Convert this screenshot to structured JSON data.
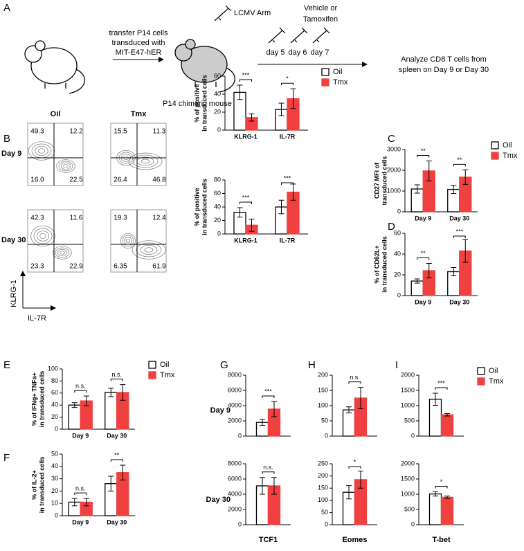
{
  "panel_labels": [
    "A",
    "B",
    "C",
    "D",
    "E",
    "F",
    "G",
    "H",
    "I"
  ],
  "schematic": {
    "transfer": [
      "transfer P14 cells",
      "transduced with",
      "MIT-E47-hER"
    ],
    "infection": "LCMV Arm",
    "treatment": [
      "Vehicle or",
      "Tamoxifen"
    ],
    "days": [
      "day 5",
      "day 6",
      "day 7"
    ],
    "mouse": "P14 chimeric mouse",
    "analysis": [
      "Analyze CD8 T cells from",
      "spleen on Day 9 or Day 30"
    ]
  },
  "flow": {
    "columns": [
      "Oil",
      "Tmx"
    ],
    "rows": [
      "Day 9",
      "Day 30"
    ],
    "y_axis": "KLRG-1",
    "x_axis": "IL-7R",
    "quadrants": [
      [
        [
          "49.3",
          "12.2",
          "16.0",
          "22.5"
        ],
        [
          "15.5",
          "11.3",
          "26.4",
          "46.8"
        ]
      ],
      [
        [
          "42.3",
          "11.6",
          "23.3",
          "22.9"
        ],
        [
          "19.3",
          "12.4",
          "6.35",
          "61.9"
        ]
      ]
    ]
  },
  "row_labels": [
    "Day 9",
    "Day 30"
  ],
  "chart_data": [
    {
      "type": "bar",
      "ylabel": [
        "% of positive",
        "in transduced cells"
      ],
      "categories": [
        "KLRG-1",
        "IL-7R"
      ],
      "series": [
        {
          "name": "Oil",
          "color": "#ffffff",
          "values": [
            42,
            23
          ],
          "errors": [
            8,
            7
          ]
        },
        {
          "name": "Tmx",
          "color": "#f04040",
          "values": [
            14,
            35
          ],
          "errors": [
            4,
            11
          ]
        }
      ],
      "ylim": [
        0,
        60
      ],
      "yticks": [
        0,
        20,
        40,
        60
      ],
      "significance": [
        "***",
        "*"
      ],
      "legend": true
    },
    {
      "type": "bar",
      "ylabel": [
        "% of positive",
        "in transduced cells"
      ],
      "categories": [
        "KLRG-1",
        "IL-7R"
      ],
      "series": [
        {
          "name": "Oil",
          "color": "#ffffff",
          "values": [
            32,
            40
          ],
          "errors": [
            7,
            10
          ]
        },
        {
          "name": "Tmx",
          "color": "#f04040",
          "values": [
            13,
            62
          ],
          "errors": [
            9,
            12
          ]
        }
      ],
      "ylim": [
        0,
        80
      ],
      "yticks": [
        0,
        20,
        40,
        60,
        80
      ],
      "significance": [
        "***",
        "***"
      ],
      "legend": false
    },
    {
      "type": "bar",
      "ylabel": [
        "CD27 MFI of",
        "transduced cells"
      ],
      "categories": [
        "Day 9",
        "Day 30"
      ],
      "series": [
        {
          "name": "Oil",
          "color": "#ffffff",
          "values": [
            1100,
            1080
          ],
          "errors": [
            200,
            200
          ]
        },
        {
          "name": "Tmx",
          "color": "#f04040",
          "values": [
            1970,
            1670
          ],
          "errors": [
            480,
            350
          ]
        }
      ],
      "ylim": [
        0,
        3000
      ],
      "yticks": [
        0,
        1000,
        2000,
        3000
      ],
      "significance": [
        "**",
        "**"
      ],
      "legend": true
    },
    {
      "type": "bar",
      "ylabel": [
        "% of CD62L+",
        "in transduced cells"
      ],
      "categories": [
        "Day 9",
        "Day 30"
      ],
      "series": [
        {
          "name": "Oil",
          "color": "#ffffff",
          "values": [
            14,
            23
          ],
          "errors": [
            2,
            4
          ]
        },
        {
          "name": "Tmx",
          "color": "#f04040",
          "values": [
            24,
            43
          ],
          "errors": [
            7,
            11
          ]
        }
      ],
      "ylim": [
        0,
        60
      ],
      "yticks": [
        0,
        20,
        40,
        60
      ],
      "significance": [
        "**",
        "***"
      ],
      "legend": false
    },
    {
      "type": "bar",
      "ylabel": [
        "% of IFNg+ TNFa+",
        "in transduced cells"
      ],
      "categories": [
        "Day 9",
        "Day 30"
      ],
      "series": [
        {
          "name": "Oil",
          "color": "#ffffff",
          "values": [
            40,
            61
          ],
          "errors": [
            4,
            7
          ]
        },
        {
          "name": "Tmx",
          "color": "#f04040",
          "values": [
            47,
            61
          ],
          "errors": [
            8,
            13
          ]
        }
      ],
      "ylim": [
        0,
        100
      ],
      "yticks": [
        0,
        20,
        40,
        60,
        80,
        100
      ],
      "significance": [
        "n.s.",
        "n.s."
      ],
      "legend": true
    },
    {
      "type": "bar",
      "ylabel": [
        "% of IL-2+",
        "in transduced cells"
      ],
      "categories": [
        "Day 9",
        "Day 30"
      ],
      "series": [
        {
          "name": "Oil",
          "color": "#ffffff",
          "values": [
            11,
            26
          ],
          "errors": [
            3,
            6
          ]
        },
        {
          "name": "Tmx",
          "color": "#f04040",
          "values": [
            11,
            35
          ],
          "errors": [
            3,
            6
          ]
        }
      ],
      "ylim": [
        0,
        50
      ],
      "yticks": [
        0,
        10,
        20,
        30,
        40,
        50
      ],
      "significance": [
        "n.s.",
        "**"
      ],
      "legend": false
    },
    {
      "type": "bar",
      "series": [
        {
          "name": "Oil",
          "color": "#ffffff",
          "values": [
            1800
          ],
          "errors": [
            400
          ]
        },
        {
          "name": "Tmx",
          "color": "#f04040",
          "values": [
            3550
          ],
          "errors": [
            1000
          ]
        }
      ],
      "ylim": [
        0,
        8000
      ],
      "yticks": [
        0,
        2000,
        4000,
        6000,
        8000
      ],
      "significance": [
        "***"
      ],
      "legend": false
    },
    {
      "type": "bar",
      "xlabel": "TCF1",
      "series": [
        {
          "name": "Oil",
          "color": "#ffffff",
          "values": [
            5100
          ],
          "errors": [
            1100
          ]
        },
        {
          "name": "Tmx",
          "color": "#f04040",
          "values": [
            5100
          ],
          "errors": [
            1100
          ]
        }
      ],
      "ylim": [
        0,
        8000
      ],
      "yticks": [
        0,
        2000,
        4000,
        6000,
        8000
      ],
      "significance": [
        "n.s."
      ],
      "legend": false
    },
    {
      "type": "bar",
      "series": [
        {
          "name": "Oil",
          "color": "#ffffff",
          "values": [
            86
          ],
          "errors": [
            10
          ]
        },
        {
          "name": "Tmx",
          "color": "#f04040",
          "values": [
            125
          ],
          "errors": [
            35
          ]
        }
      ],
      "ylim": [
        0,
        200
      ],
      "yticks": [
        0,
        50,
        100,
        150,
        200
      ],
      "significance": [
        "n.s."
      ],
      "legend": false
    },
    {
      "type": "bar",
      "xlabel": "Eomes",
      "series": [
        {
          "name": "Oil",
          "color": "#ffffff",
          "values": [
            133
          ],
          "errors": [
            27
          ]
        },
        {
          "name": "Tmx",
          "color": "#f04040",
          "values": [
            185
          ],
          "errors": [
            35
          ]
        }
      ],
      "ylim": [
        0,
        250
      ],
      "yticks": [
        0,
        50,
        100,
        150,
        200,
        250
      ],
      "significance": [
        "*"
      ],
      "legend": false
    },
    {
      "type": "bar",
      "series": [
        {
          "name": "Oil",
          "color": "#ffffff",
          "values": [
            1210
          ],
          "errors": [
            200
          ]
        },
        {
          "name": "Tmx",
          "color": "#f04040",
          "values": [
            700
          ],
          "errors": [
            40
          ]
        }
      ],
      "ylim": [
        0,
        2000
      ],
      "yticks": [
        0,
        500,
        1000,
        1500,
        2000
      ],
      "significance": [
        "***"
      ],
      "legend": true
    },
    {
      "type": "bar",
      "xlabel": "T-bet",
      "series": [
        {
          "name": "Oil",
          "color": "#ffffff",
          "values": [
            1010
          ],
          "errors": [
            70
          ]
        },
        {
          "name": "Tmx",
          "color": "#f04040",
          "values": [
            900
          ],
          "errors": [
            40
          ]
        }
      ],
      "ylim": [
        0,
        2000
      ],
      "yticks": [
        0,
        500,
        1000,
        1500,
        2000
      ],
      "significance": [
        "*"
      ],
      "legend": false
    }
  ]
}
